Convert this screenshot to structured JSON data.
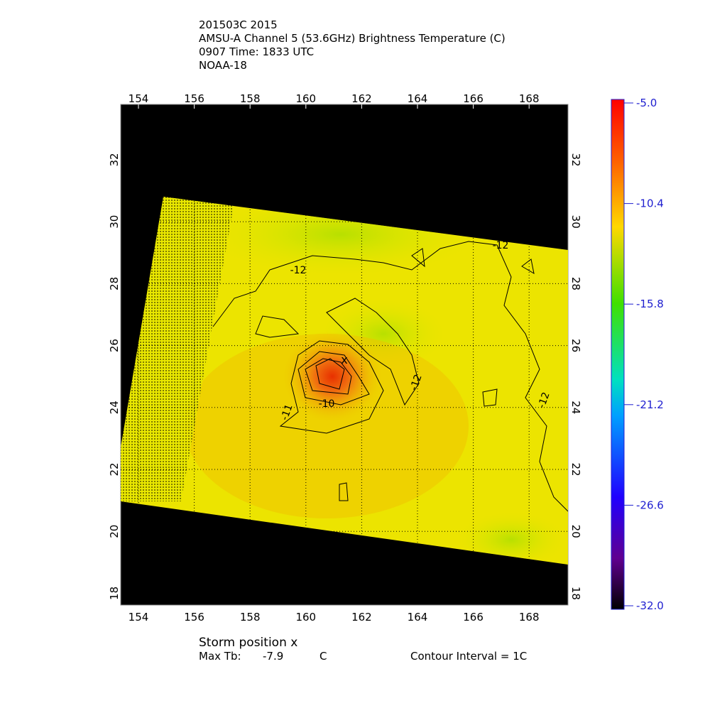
{
  "header": {
    "lines": [
      "201503C 2015",
      "AMSU-A Channel 5 (53.6GHz) Brightness Temperature (C)",
      "0907 Time: 1833 UTC",
      "NOAA-18"
    ]
  },
  "map": {
    "lon_ticks": [
      154,
      156,
      158,
      160,
      162,
      164,
      166,
      168
    ],
    "lat_ticks": [
      18,
      20,
      22,
      24,
      26,
      28,
      30,
      32
    ],
    "contour_labels": [
      "-12",
      "-12",
      "-12",
      "-11",
      "-10",
      "-12"
    ],
    "storm_marker": "x"
  },
  "colorbar": {
    "ticks": [
      "-5.0",
      "-10.4",
      "-15.8",
      "-21.2",
      "-26.6",
      "-32.0"
    ]
  },
  "footer": {
    "storm_position": "Storm position x",
    "max_tb_label": "Max Tb:",
    "max_tb_value": "-7.9",
    "max_tb_unit": "C",
    "contour_interval": "Contour Interval = 1C"
  }
}
